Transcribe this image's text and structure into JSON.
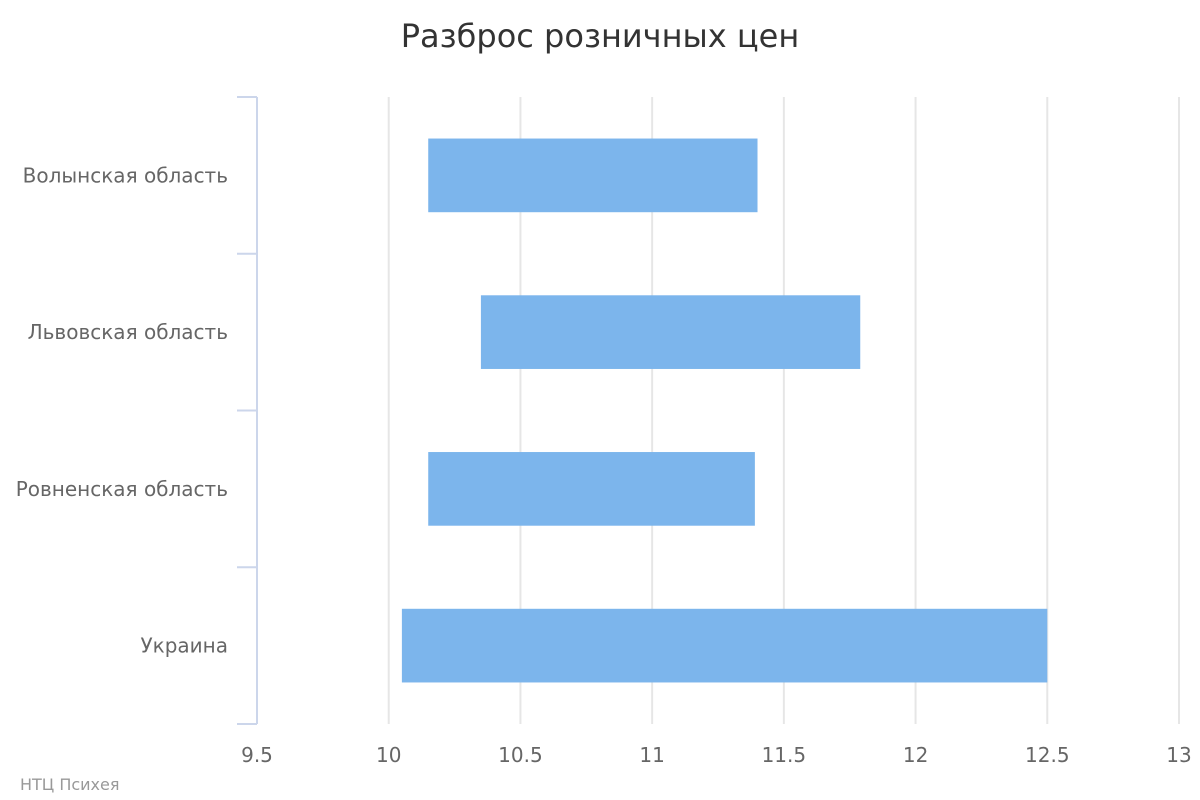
{
  "chart_data": {
    "type": "bar",
    "orientation": "horizontal",
    "subtype": "range",
    "title": "Разброс розничных цен",
    "categories": [
      "Волынская область",
      "Львовская область",
      "Ровненская область",
      "Украина"
    ],
    "ranges": [
      [
        10.15,
        11.4
      ],
      [
        10.35,
        11.79
      ],
      [
        10.15,
        11.39
      ],
      [
        10.05,
        12.5
      ]
    ],
    "xlim": [
      9.5,
      13
    ],
    "xticks": [
      9.5,
      10,
      10.5,
      11,
      11.5,
      12,
      12.5,
      13
    ],
    "xtick_labels": [
      "9.5",
      "10",
      "10.5",
      "11",
      "11.5",
      "12",
      "12.5",
      "13"
    ],
    "grid": true,
    "legend": "none",
    "bar_color": "#7cb5ec",
    "credit": "НТЦ Психея"
  }
}
